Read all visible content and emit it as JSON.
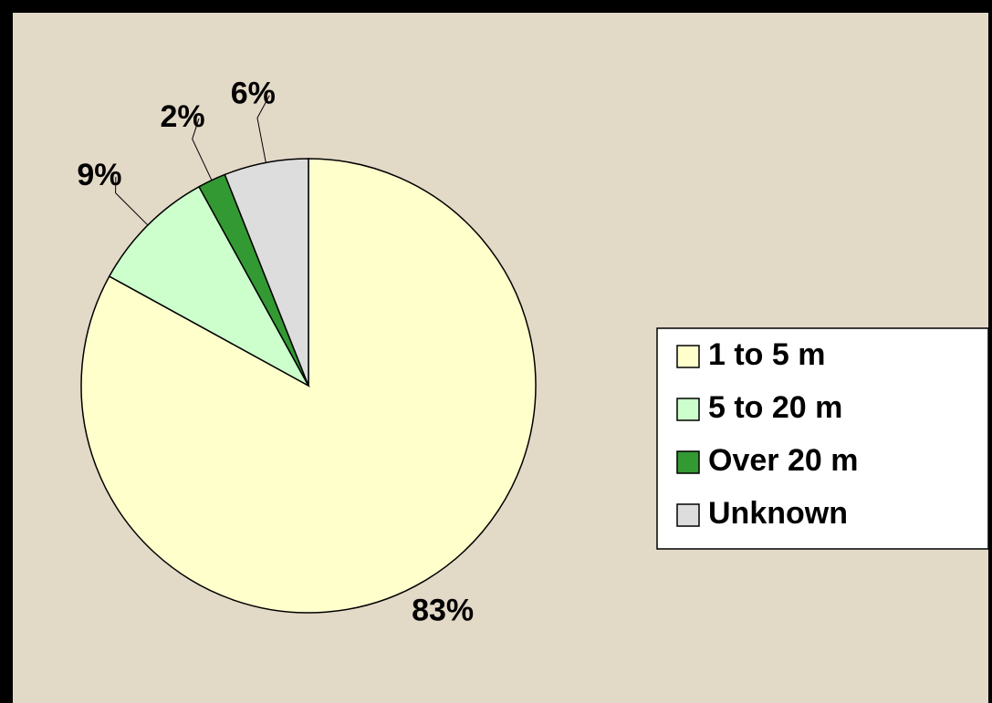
{
  "chart_data": {
    "type": "pie",
    "categories": [
      "1 to 5 m",
      "5 to 20 m",
      "Over 20 m",
      "Unknown"
    ],
    "values": [
      83,
      9,
      2,
      6
    ],
    "value_labels": [
      "83%",
      "9%",
      "2%",
      "6%"
    ],
    "colors": [
      "#ffffcc",
      "#ccffcc",
      "#339933",
      "#dddddd"
    ],
    "legend": "right"
  }
}
